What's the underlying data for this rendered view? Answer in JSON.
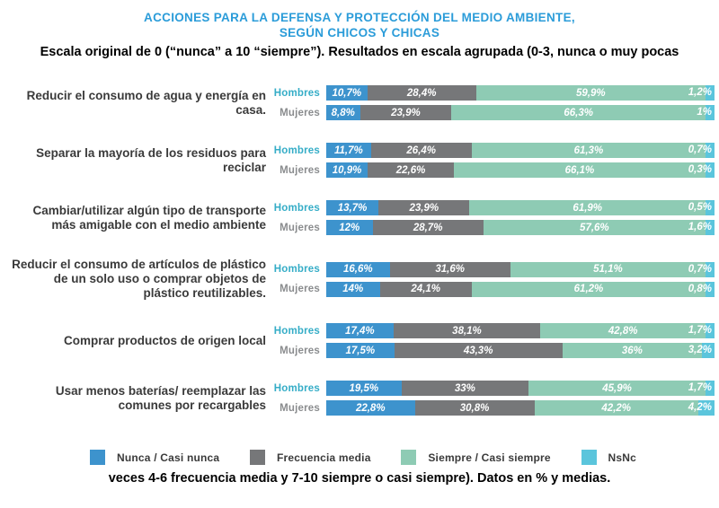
{
  "page": {
    "title_line1": "ACCIONES PARA LA DEFENSA Y PROTECCIÓN DEL MEDIO AMBIENTE,",
    "title_line2": "SEGÚN CHICOS Y CHICAS",
    "subtitle": "Escala original de 0 (“nunca” a 10 “siempre”). Resultados en escala agrupada (0-3, nunca o muy pocas",
    "footer": "veces 4-6 frecuencia media y 7-10 siempre o casi siempre).  Datos en % y medias."
  },
  "colors": {
    "title_blue": "#2B9CD9",
    "nunca_blue": "#3D93CD",
    "frecuencia_gray": "#767779",
    "siempre_teal": "#8ECBB4",
    "nsnc_cyan": "#5BC5DC",
    "hombres_label": "#35ADC7",
    "mujeres_label": "#8A8C8E"
  },
  "chart_data": {
    "type": "bar",
    "orientation": "horizontal",
    "stacked": true,
    "unit": "%",
    "legend_position": "bottom",
    "series_names": [
      "Nunca / Casi nunca",
      "Frecuencia media",
      "Siempre / Casi siempre",
      "NsNc"
    ],
    "legend": [
      {
        "label": "Nunca / Casi nunca",
        "color": "#3D93CD"
      },
      {
        "label": "Frecuencia media",
        "color": "#767779"
      },
      {
        "label": "Siempre / Casi siempre",
        "color": "#8ECBB4"
      },
      {
        "label": "NsNc",
        "color": "#5BC5DC"
      }
    ],
    "row_labels": [
      "Hombres",
      "Mujeres"
    ],
    "groups": [
      {
        "category": "Reducir el consumo de agua y energía en casa.",
        "rows": [
          {
            "label": "Hombres",
            "values": [
              10.7,
              28.4,
              59.9,
              1.2
            ],
            "display": [
              "10,7%",
              "28,4%",
              "59,9%",
              "1,2%"
            ]
          },
          {
            "label": "Mujeres",
            "values": [
              8.8,
              23.9,
              66.3,
              1.0
            ],
            "display": [
              "8,8%",
              "23,9%",
              "66,3%",
              "1%"
            ]
          }
        ]
      },
      {
        "category": "Separar la mayoría de los residuos para reciclar",
        "rows": [
          {
            "label": "Hombres",
            "values": [
              11.7,
              26.4,
              61.3,
              0.7
            ],
            "display": [
              "11,7%",
              "26,4%",
              "61,3%",
              "0,7%"
            ]
          },
          {
            "label": "Mujeres",
            "values": [
              10.9,
              22.6,
              66.1,
              0.3
            ],
            "display": [
              "10,9%",
              "22,6%",
              "66,1%",
              "0,3%"
            ]
          }
        ]
      },
      {
        "category": "Cambiar/utilizar algún tipo de transporte más amigable con el medio ambiente",
        "rows": [
          {
            "label": "Hombres",
            "values": [
              13.7,
              23.9,
              61.9,
              0.5
            ],
            "display": [
              "13,7%",
              "23,9%",
              "61,9%",
              "0,5%"
            ]
          },
          {
            "label": "Mujeres",
            "values": [
              12.0,
              28.7,
              57.6,
              1.6
            ],
            "display": [
              "12%",
              "28,7%",
              "57,6%",
              "1,6%"
            ]
          }
        ]
      },
      {
        "category": "Reducir el consumo de artículos de plástico de un solo uso o comprar objetos de plástico reutilizables.",
        "rows": [
          {
            "label": "Hombres",
            "values": [
              16.6,
              31.6,
              51.1,
              0.7
            ],
            "display": [
              "16,6%",
              "31,6%",
              "51,1%",
              "0,7%"
            ]
          },
          {
            "label": "Mujeres",
            "values": [
              14.0,
              24.1,
              61.2,
              0.8
            ],
            "display": [
              "14%",
              "24,1%",
              "61,2%",
              "0,8%"
            ]
          }
        ]
      },
      {
        "category": "Comprar productos de origen local",
        "rows": [
          {
            "label": "Hombres",
            "values": [
              17.4,
              38.1,
              42.8,
              1.7
            ],
            "display": [
              "17,4%",
              "38,1%",
              "42,8%",
              "1,7%"
            ]
          },
          {
            "label": "Mujeres",
            "values": [
              17.5,
              43.3,
              36.0,
              3.2
            ],
            "display": [
              "17,5%",
              "43,3%",
              "36%",
              "3,2%"
            ]
          }
        ]
      },
      {
        "category": "Usar menos baterías/ reemplazar las comunes por recargables",
        "rows": [
          {
            "label": "Hombres",
            "values": [
              19.5,
              33.0,
              45.9,
              1.7
            ],
            "display": [
              "19,5%",
              "33%",
              "45,9%",
              "1,7%"
            ]
          },
          {
            "label": "Mujeres",
            "values": [
              22.8,
              30.8,
              42.2,
              4.2
            ],
            "display": [
              "22,8%",
              "30,8%",
              "42,2%",
              "4,2%"
            ]
          }
        ]
      }
    ]
  }
}
